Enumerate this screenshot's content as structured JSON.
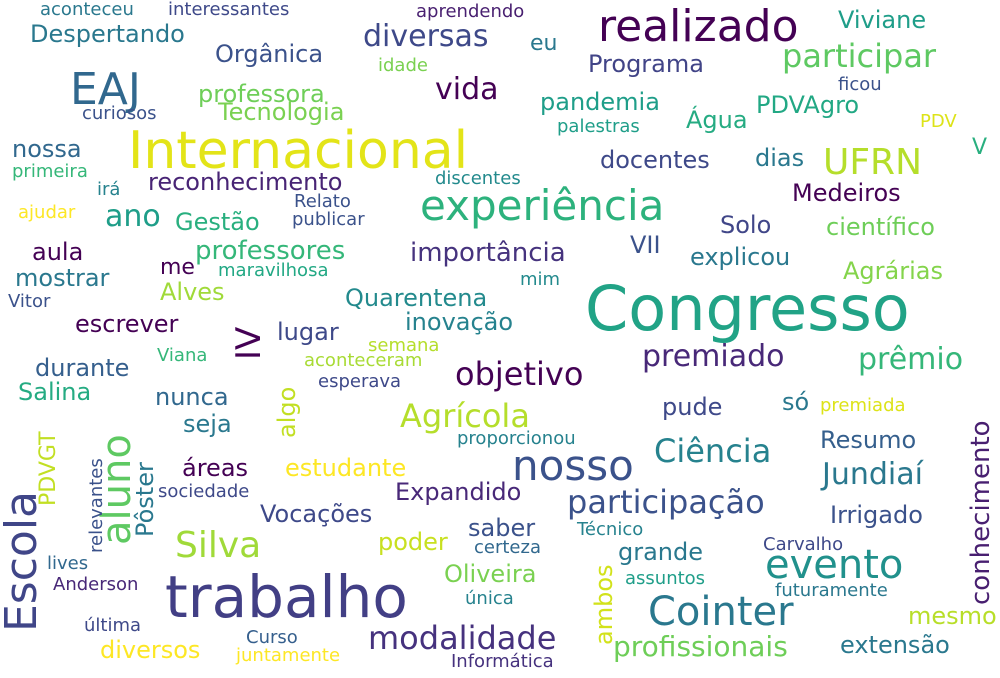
{
  "words": [
    {
      "text": "Congresso",
      "color": "#21a386"
    },
    {
      "text": "trabalho",
      "color": "#423f85"
    },
    {
      "text": "Internacional",
      "color": "#e3e418"
    },
    {
      "text": "experiência",
      "color": "#2db27d"
    },
    {
      "text": "realizado",
      "color": "#440154"
    },
    {
      "text": "nosso",
      "color": "#3b528b"
    },
    {
      "text": "evento",
      "color": "#21918c"
    },
    {
      "text": "Cointer",
      "color": "#2a788e"
    },
    {
      "text": "EAJ",
      "color": "#31688e"
    },
    {
      "text": "Escola",
      "color": "#404688"
    },
    {
      "text": "aluno",
      "color": "#5ec962"
    },
    {
      "text": "participação",
      "color": "#3b528b"
    },
    {
      "text": "modalidade",
      "color": "#46327e"
    },
    {
      "text": "UFRN",
      "color": "#b5de2b"
    },
    {
      "text": "Silva",
      "color": "#a0da39"
    },
    {
      "text": "premiado",
      "color": "#482878"
    },
    {
      "text": "objetivo",
      "color": "#440154"
    },
    {
      "text": "participar",
      "color": "#5ec962"
    },
    {
      "text": "Agrícola",
      "color": "#b5de2b"
    },
    {
      "text": "Ciência",
      "color": "#26828e"
    },
    {
      "text": "diversas",
      "color": "#3e4989"
    },
    {
      "text": "prêmio",
      "color": "#35b779"
    },
    {
      "text": "Jundiaí",
      "color": "#2a788e"
    },
    {
      "text": "vida",
      "color": "#440154"
    },
    {
      "text": "ano",
      "color": "#1f9e89"
    },
    {
      "text": "profissionais",
      "color": "#6ece58"
    },
    {
      "text": "conhecimento",
      "color": "#481f70"
    },
    {
      "text": "importância",
      "color": "#46337e"
    },
    {
      "text": "professores",
      "color": "#35b779"
    },
    {
      "text": "Despertando",
      "color": "#2a788e"
    },
    {
      "text": "Orgânica",
      "color": "#3b528b"
    },
    {
      "text": "Programa",
      "color": "#414487"
    },
    {
      "text": "professora",
      "color": "#6ece58"
    },
    {
      "text": "Tecnologia",
      "color": "#7ad151"
    },
    {
      "text": "pandemia",
      "color": "#1f9e89"
    },
    {
      "text": "PDVAgro",
      "color": "#22a884"
    },
    {
      "text": "Água",
      "color": "#25ab82"
    },
    {
      "text": "Viviane",
      "color": "#1f9e89"
    },
    {
      "text": "reconhecimento",
      "color": "#482475"
    },
    {
      "text": "docentes",
      "color": "#3e4989"
    },
    {
      "text": "dias",
      "color": "#2a788e"
    },
    {
      "text": "Medeiros",
      "color": "#440154"
    },
    {
      "text": "Gestão",
      "color": "#29af7f"
    },
    {
      "text": "Solo",
      "color": "#404688"
    },
    {
      "text": "científico",
      "color": "#6ece58"
    },
    {
      "text": "explicou",
      "color": "#2a788e"
    },
    {
      "text": "VII",
      "color": "#3b528b"
    },
    {
      "text": "Agrárias",
      "color": "#84d44b"
    },
    {
      "text": "aula",
      "color": "#440154"
    },
    {
      "text": "mostrar",
      "color": "#2a788e"
    },
    {
      "text": "Alves",
      "color": "#a0da39"
    },
    {
      "text": "Quarentena",
      "color": "#238a8d"
    },
    {
      "text": "inovação",
      "color": "#26828e"
    },
    {
      "text": "escrever",
      "color": "#440154"
    },
    {
      "text": "lugar",
      "color": "#3e4989"
    },
    {
      "text": "IV",
      "color": "#440154"
    },
    {
      "text": "durante",
      "color": "#355f8d"
    },
    {
      "text": "Salina",
      "color": "#25ab82"
    },
    {
      "text": "nunca",
      "color": "#31688e"
    },
    {
      "text": "seja",
      "color": "#2a788e"
    },
    {
      "text": "algo",
      "color": "#c2df23"
    },
    {
      "text": "pude",
      "color": "#3e4989"
    },
    {
      "text": "só",
      "color": "#2a788e"
    },
    {
      "text": "Resumo",
      "color": "#355f8d"
    },
    {
      "text": "áreas",
      "color": "#440154"
    },
    {
      "text": "estudante",
      "color": "#fde725"
    },
    {
      "text": "Pôster",
      "color": "#2a788e"
    },
    {
      "text": "Expandido",
      "color": "#482878"
    },
    {
      "text": "Irrigado",
      "color": "#3b528b"
    },
    {
      "text": "Vocações",
      "color": "#3e4989"
    },
    {
      "text": "saber",
      "color": "#3b528b"
    },
    {
      "text": "poder",
      "color": "#c8e020"
    },
    {
      "text": "grande",
      "color": "#2a788e"
    },
    {
      "text": "Oliveira",
      "color": "#7ad151"
    },
    {
      "text": "ambos",
      "color": "#d2e21b"
    },
    {
      "text": "mesmo",
      "color": "#b8de29"
    },
    {
      "text": "extensão",
      "color": "#2a788e"
    },
    {
      "text": "diversos",
      "color": "#fde725"
    },
    {
      "text": "nossa",
      "color": "#31688e"
    },
    {
      "text": "PDVGT",
      "color": "#c2df23"
    },
    {
      "text": "eu",
      "color": "#2a788e"
    },
    {
      "text": "V",
      "color": "#29af7f"
    },
    {
      "text": "me",
      "color": "#440154"
    },
    {
      "text": "aconteceu",
      "color": "#2a788e"
    },
    {
      "text": "interessantes",
      "color": "#3e4989"
    },
    {
      "text": "aprendendo",
      "color": "#481f70"
    },
    {
      "text": "idade",
      "color": "#7ad151"
    },
    {
      "text": "curiosos",
      "color": "#3b528b"
    },
    {
      "text": "palestras",
      "color": "#1f9e89"
    },
    {
      "text": "ficou",
      "color": "#3b528b"
    },
    {
      "text": "PDV",
      "color": "#dde318"
    },
    {
      "text": "primeira",
      "color": "#35b779"
    },
    {
      "text": "irá",
      "color": "#26828e"
    },
    {
      "text": "discentes",
      "color": "#238a8d"
    },
    {
      "text": "ajudar",
      "color": "#fde725"
    },
    {
      "text": "Relato",
      "color": "#3b528b"
    },
    {
      "text": "publicar",
      "color": "#3b528b"
    },
    {
      "text": "maravilhosa",
      "color": "#22a884"
    },
    {
      "text": "Vitor",
      "color": "#3b528b"
    },
    {
      "text": "mim",
      "color": "#238a8d"
    },
    {
      "text": "semana",
      "color": "#b5de2b"
    },
    {
      "text": "aconteceram",
      "color": "#a8db34"
    },
    {
      "text": "Viana",
      "color": "#35b779"
    },
    {
      "text": "esperava",
      "color": "#3e4989"
    },
    {
      "text": "premiada",
      "color": "#dde318"
    },
    {
      "text": "proporcionou",
      "color": "#26828e"
    },
    {
      "text": "relevantes",
      "color": "#3b528b"
    },
    {
      "text": "sociedade",
      "color": "#3e4989"
    },
    {
      "text": "Técnico",
      "color": "#26828e"
    },
    {
      "text": "certeza",
      "color": "#31688e"
    },
    {
      "text": "Carvalho",
      "color": "#3e4989"
    },
    {
      "text": "lives",
      "color": "#31688e"
    },
    {
      "text": "Anderson",
      "color": "#482878"
    },
    {
      "text": "única",
      "color": "#26828e"
    },
    {
      "text": "assuntos",
      "color": "#1f9e89"
    },
    {
      "text": "futuramente",
      "color": "#2a788e"
    },
    {
      "text": "última",
      "color": "#3e4989"
    },
    {
      "text": "Curso",
      "color": "#355f8d"
    },
    {
      "text": "juntamente",
      "color": "#fde725"
    },
    {
      "text": "Informática",
      "color": "#46327e"
    }
  ]
}
